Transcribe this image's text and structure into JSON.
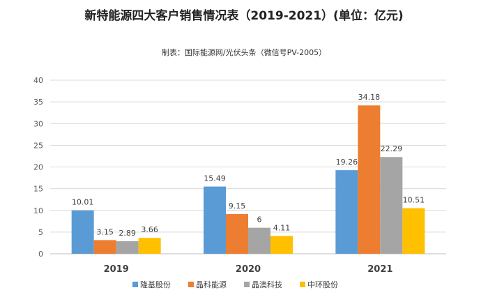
{
  "chart_data": {
    "type": "bar",
    "title": "新特能源四大客户销售情况表（2019-2021）(单位：亿元)",
    "subtitle": "制表：国际能源网/光伏头条（微信号PV-2005）",
    "categories": [
      "2019",
      "2020",
      "2021"
    ],
    "series": [
      {
        "name": "隆基股份",
        "color": "#5B9BD5",
        "values": [
          10.01,
          15.49,
          19.26
        ],
        "labels": [
          "10.01",
          "15.49",
          "19.26"
        ]
      },
      {
        "name": "晶科能源",
        "color": "#ED7D31",
        "values": [
          3.15,
          9.15,
          34.18
        ],
        "labels": [
          "3.15",
          "9.15",
          "34.18"
        ]
      },
      {
        "name": "晶澳科技",
        "color": "#A5A5A5",
        "values": [
          2.89,
          6,
          22.29
        ],
        "labels": [
          "2.89",
          "6",
          "22.29"
        ]
      },
      {
        "name": "中环股份",
        "color": "#FFC000",
        "values": [
          3.66,
          4.11,
          10.51
        ],
        "labels": [
          "3.66",
          "4.11",
          "10.51"
        ]
      }
    ],
    "yticks": [
      "0",
      "5",
      "10",
      "15",
      "20",
      "25",
      "30",
      "35",
      "40"
    ],
    "ylim": [
      0,
      40
    ],
    "grid": true,
    "legend_position": "bottom"
  }
}
